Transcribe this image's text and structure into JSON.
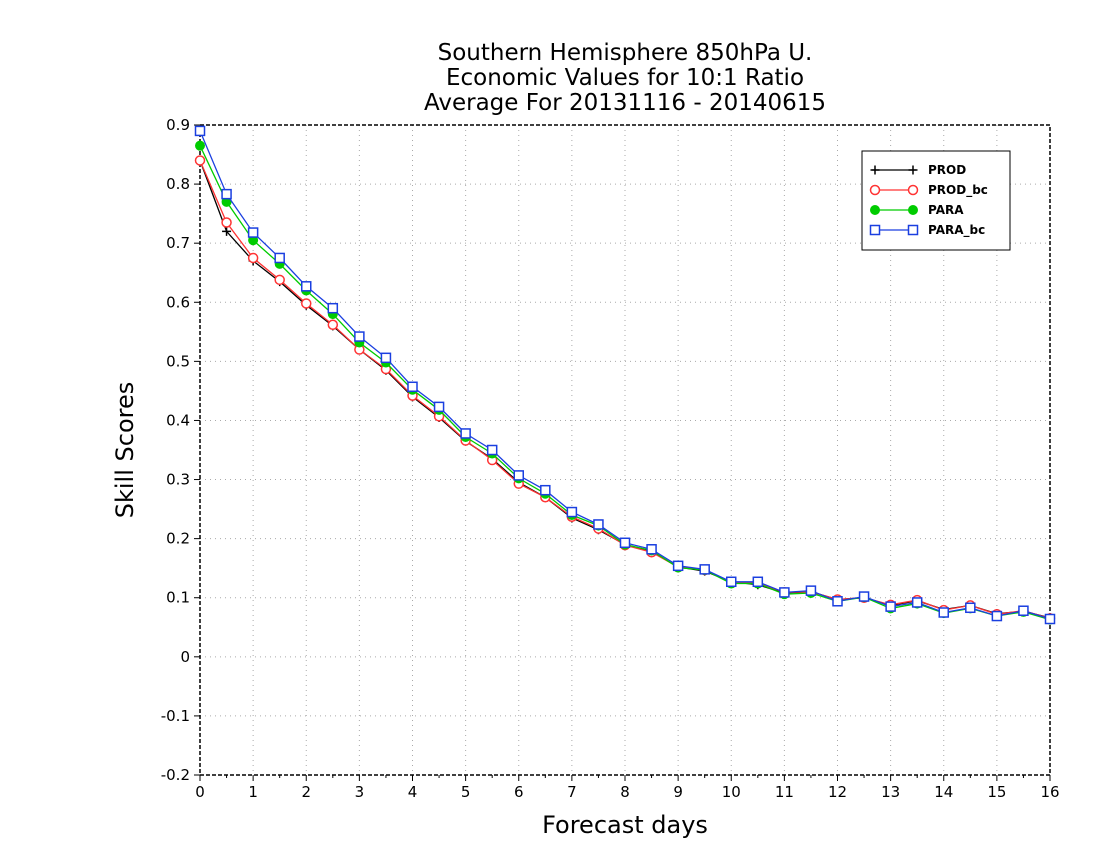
{
  "chart_data": {
    "type": "line",
    "title": [
      "Southern Hemisphere 850hPa U.",
      "Economic Values for 10:1 Ratio",
      "Average For 20131116 - 20140615"
    ],
    "xlabel": "Forecast days",
    "ylabel": "Skill Scores",
    "xlim": [
      0,
      16
    ],
    "ylim": [
      -0.2,
      0.9
    ],
    "xticks": [
      "0",
      "1",
      "2",
      "3",
      "4",
      "5",
      "6",
      "7",
      "8",
      "9",
      "10",
      "11",
      "12",
      "13",
      "14",
      "15",
      "16"
    ],
    "yticks": [
      "-0.2",
      "-0.1",
      "0",
      "0.1",
      "0.2",
      "0.3",
      "0.4",
      "0.5",
      "0.6",
      "0.7",
      "0.8",
      "0.9"
    ],
    "grid": true,
    "legend_position": "top-right",
    "x": [
      0,
      0.5,
      1,
      1.5,
      2,
      2.5,
      3,
      3.5,
      4,
      4.5,
      5,
      5.5,
      6,
      6.5,
      7,
      7.5,
      8,
      8.5,
      9,
      9.5,
      10,
      10.5,
      11,
      11.5,
      12,
      12.5,
      13,
      13.5,
      14,
      14.5,
      15,
      15.5,
      16
    ],
    "series": [
      {
        "name": "PROD",
        "color": "#000000",
        "marker": "plus",
        "values": [
          0.84,
          0.72,
          0.67,
          0.635,
          0.595,
          0.56,
          0.52,
          0.485,
          0.44,
          0.405,
          0.365,
          0.335,
          0.295,
          0.27,
          0.235,
          0.215,
          0.19,
          0.178,
          0.152,
          0.145,
          0.127,
          0.122,
          0.108,
          0.11,
          0.097,
          0.1,
          0.087,
          0.095,
          0.08,
          0.087,
          0.073,
          0.077,
          0.066
        ]
      },
      {
        "name": "PROD_bc",
        "color": "#ff3333",
        "marker": "circle-open",
        "values": [
          0.84,
          0.735,
          0.675,
          0.638,
          0.598,
          0.562,
          0.52,
          0.487,
          0.442,
          0.407,
          0.366,
          0.333,
          0.293,
          0.27,
          0.237,
          0.217,
          0.189,
          0.177,
          0.152,
          0.147,
          0.126,
          0.125,
          0.109,
          0.11,
          0.097,
          0.1,
          0.088,
          0.096,
          0.079,
          0.087,
          0.072,
          0.078,
          0.065
        ]
      },
      {
        "name": "PARA",
        "color": "#00cc00",
        "marker": "circle-filled",
        "values": [
          0.865,
          0.77,
          0.705,
          0.665,
          0.62,
          0.58,
          0.532,
          0.498,
          0.452,
          0.418,
          0.372,
          0.344,
          0.302,
          0.276,
          0.24,
          0.222,
          0.19,
          0.18,
          0.151,
          0.147,
          0.124,
          0.124,
          0.106,
          0.108,
          0.094,
          0.101,
          0.082,
          0.09,
          0.074,
          0.082,
          0.069,
          0.076,
          0.063
        ]
      },
      {
        "name": "PARA_bc",
        "color": "#1a3fe0",
        "marker": "square-open",
        "values": [
          0.89,
          0.783,
          0.718,
          0.675,
          0.627,
          0.59,
          0.542,
          0.506,
          0.457,
          0.423,
          0.378,
          0.35,
          0.307,
          0.282,
          0.245,
          0.224,
          0.193,
          0.182,
          0.154,
          0.148,
          0.127,
          0.127,
          0.109,
          0.112,
          0.094,
          0.102,
          0.085,
          0.092,
          0.075,
          0.083,
          0.069,
          0.078,
          0.064
        ]
      }
    ]
  }
}
